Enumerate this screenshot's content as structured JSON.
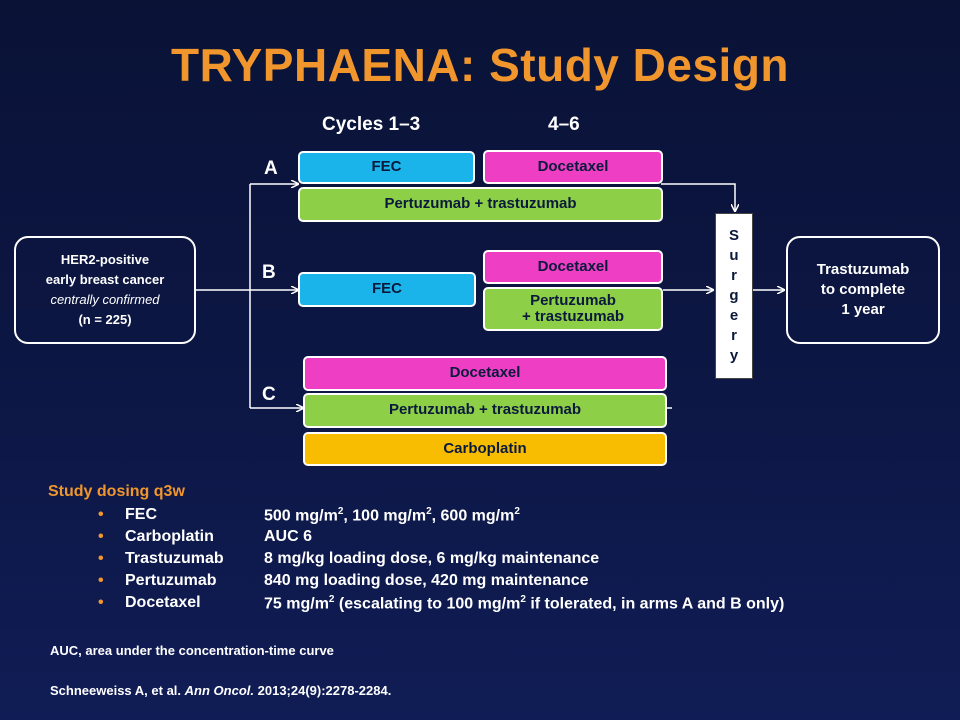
{
  "title": "TRYPHAENA: Study Design",
  "cycles": {
    "first": "Cycles 1–3",
    "second": "4–6"
  },
  "arms": [
    {
      "label": "A",
      "boxes": {
        "fec": "FEC",
        "docetaxel": "Docetaxel",
        "pertuzumab": "Pertuzumab + trastuzumab"
      }
    },
    {
      "label": "B",
      "boxes": {
        "fec": "FEC",
        "docetaxel": "Docetaxel",
        "pertuzumab_line1": "Pertuzumab",
        "pertuzumab_line2": "+ trastuzumab"
      }
    },
    {
      "label": "C",
      "boxes": {
        "docetaxel": "Docetaxel",
        "pertuzumab": "Pertuzumab + trastuzumab",
        "carboplatin": "Carboplatin"
      }
    }
  ],
  "population": {
    "line1": "HER2-positive",
    "line2": "early breast cancer",
    "line3": "centrally confirmed",
    "line4": "(n = 225)"
  },
  "surgery_letters": [
    "S",
    "u",
    "r",
    "g",
    "e",
    "r",
    "y"
  ],
  "followup": {
    "line1": "Trastuzumab",
    "line2": "to complete",
    "line3": "1 year"
  },
  "dosing": {
    "heading": "Study dosing q3w",
    "bullet": "•",
    "rows": [
      {
        "drug": "FEC",
        "d1": "500 mg/m",
        "s1": "2",
        "d2": ", 100 mg/m",
        "s2": "2",
        "d3": ", 600 mg/m",
        "s3": "2",
        "d4": ""
      },
      {
        "drug": "Carboplatin",
        "d1": "AUC 6"
      },
      {
        "drug": "Trastuzumab",
        "d1": "8 mg/kg loading dose, 6 mg/kg maintenance"
      },
      {
        "drug": "Pertuzumab",
        "d1": "840 mg loading dose, 420 mg maintenance"
      },
      {
        "drug": "Docetaxel",
        "d1": "75 mg/m",
        "s1": "2",
        "d2": " (escalating to 100 mg/m",
        "s2": "2",
        "d3": " if tolerated, in arms A and B only)"
      }
    ]
  },
  "footnote": "AUC, area under the concentration-time curve",
  "citation": {
    "authors": "Schneeweiss A, et al.",
    "journal": "Ann Oncol.",
    "details": "2013;24(9):2278-2284."
  },
  "colors": {
    "title": "#f0962c",
    "fec": "#1ab4ea",
    "docetaxel": "#ee3ec4",
    "pertuzumab": "#8dcf47",
    "carboplatin": "#f8bc00",
    "bullet": "#f0962c"
  }
}
